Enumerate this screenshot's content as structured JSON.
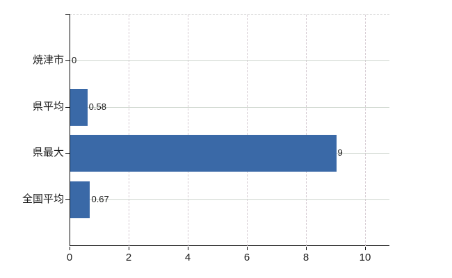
{
  "chart_data": {
    "type": "bar",
    "orientation": "horizontal",
    "categories": [
      "焼津市",
      "県平均",
      "県最大",
      "全国平均"
    ],
    "values": [
      0,
      0.58,
      9,
      0.67
    ],
    "value_labels": [
      "0",
      "0.58",
      "9",
      "0.67"
    ],
    "xlim": [
      0,
      10.8
    ],
    "xticks": [
      0,
      2,
      4,
      6,
      8,
      10
    ],
    "grid": true,
    "legend_position": "none",
    "bar_color": "#3a69a7",
    "axis_color": "#000000",
    "label_color": "#1a1a1a",
    "h_gridline_color": "#ccd4cc",
    "v_gridline_color": "#d4c9d1",
    "top_border_color": "#d2d2d2"
  }
}
